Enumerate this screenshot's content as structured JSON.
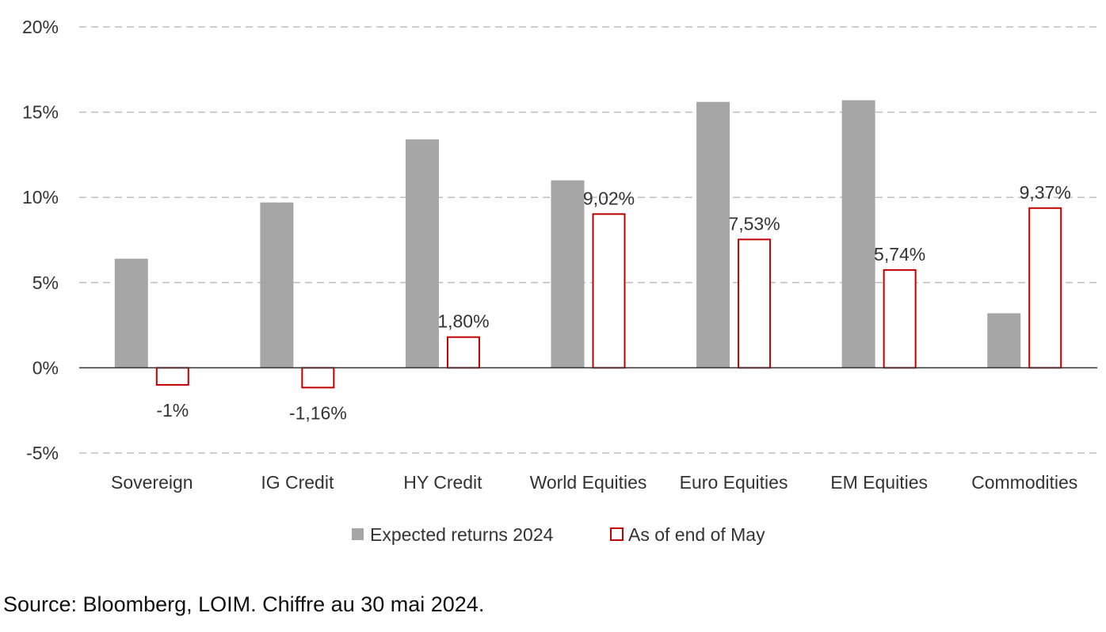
{
  "chart_data": {
    "type": "bar",
    "title": "",
    "xlabel": "",
    "ylabel": "",
    "categories": [
      "Sovereign",
      "IG Credit",
      "HY Credit",
      "World Equities",
      "Euro Equities",
      "EM Equities",
      "Commodities"
    ],
    "series": [
      {
        "name": "Expected returns 2024",
        "values": [
          6.4,
          9.7,
          13.4,
          11.0,
          15.6,
          15.7,
          3.2
        ],
        "labels": [
          "",
          "",
          "",
          "",
          "",
          "",
          ""
        ],
        "style": "filled",
        "color": "#a6a6a6"
      },
      {
        "name": "As of end of May",
        "values": [
          -1.0,
          -1.16,
          1.8,
          9.02,
          7.53,
          5.74,
          9.37
        ],
        "labels": [
          "-1%",
          "-1,16%",
          "1,80%",
          "9,02%",
          "7,53%",
          "5,74%",
          "9,37%"
        ],
        "style": "outline",
        "color": "#c00000"
      }
    ],
    "ylim": [
      -5,
      20
    ],
    "yticks": [
      -5,
      0,
      5,
      10,
      15,
      20
    ],
    "ytick_labels": [
      "-5%",
      "0%",
      "5%",
      "10%",
      "15%",
      "20%"
    ],
    "grid": true,
    "legend": "bottom"
  },
  "source": "Source: Bloomberg, LOIM. Chiffre au 30 mai 2024."
}
